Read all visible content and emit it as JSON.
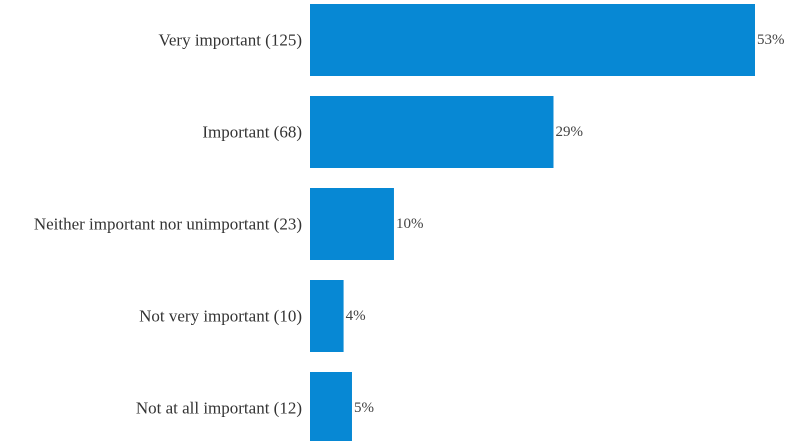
{
  "chart_data": {
    "type": "bar",
    "orientation": "horizontal",
    "title": "",
    "xlabel": "",
    "ylabel": "",
    "categories": [
      "Very important (125)",
      "Important (68)",
      "Neither important nor unimportant (23)",
      "Not very important (10)",
      "Not at all important (12)"
    ],
    "values": [
      53,
      29,
      10,
      4,
      5
    ],
    "value_labels": [
      "53%",
      "29%",
      "10%",
      "4%",
      "5%"
    ],
    "xlim": [
      0,
      53
    ],
    "grid": false,
    "legend": "none",
    "bar_color": "#0788d4"
  }
}
